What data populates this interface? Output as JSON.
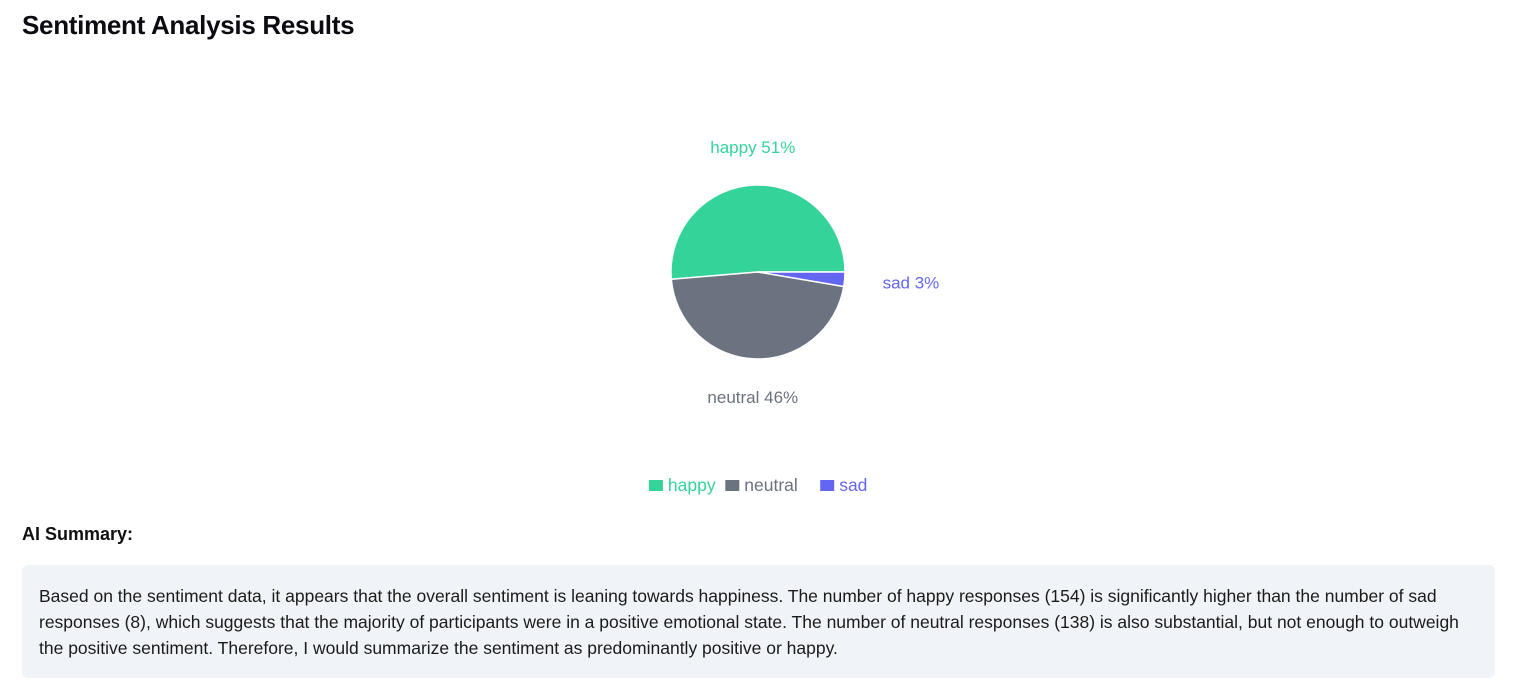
{
  "page": {
    "title": "Sentiment Analysis Results"
  },
  "chart_data": {
    "type": "pie",
    "title": "",
    "categories": [
      "happy",
      "neutral",
      "sad"
    ],
    "values": [
      154,
      138,
      8
    ],
    "percent_labels": [
      "happy 51%",
      "neutral 46%",
      "sad 3%"
    ],
    "colors": [
      "#34d399",
      "#6b7280",
      "#6366f1"
    ],
    "legend": {
      "placement": "bottom",
      "entries": [
        "happy",
        "neutral",
        "sad"
      ]
    }
  },
  "summary": {
    "heading": "AI Summary:",
    "text": "Based on the sentiment data, it appears that the overall sentiment is leaning towards happiness. The number of happy responses (154) is significantly higher than the number of sad responses (8), which suggests that the majority of participants were in a positive emotional state. The number of neutral responses (138) is also substantial, but not enough to outweigh the positive sentiment. Therefore, I would summarize the sentiment as predominantly positive or happy."
  }
}
